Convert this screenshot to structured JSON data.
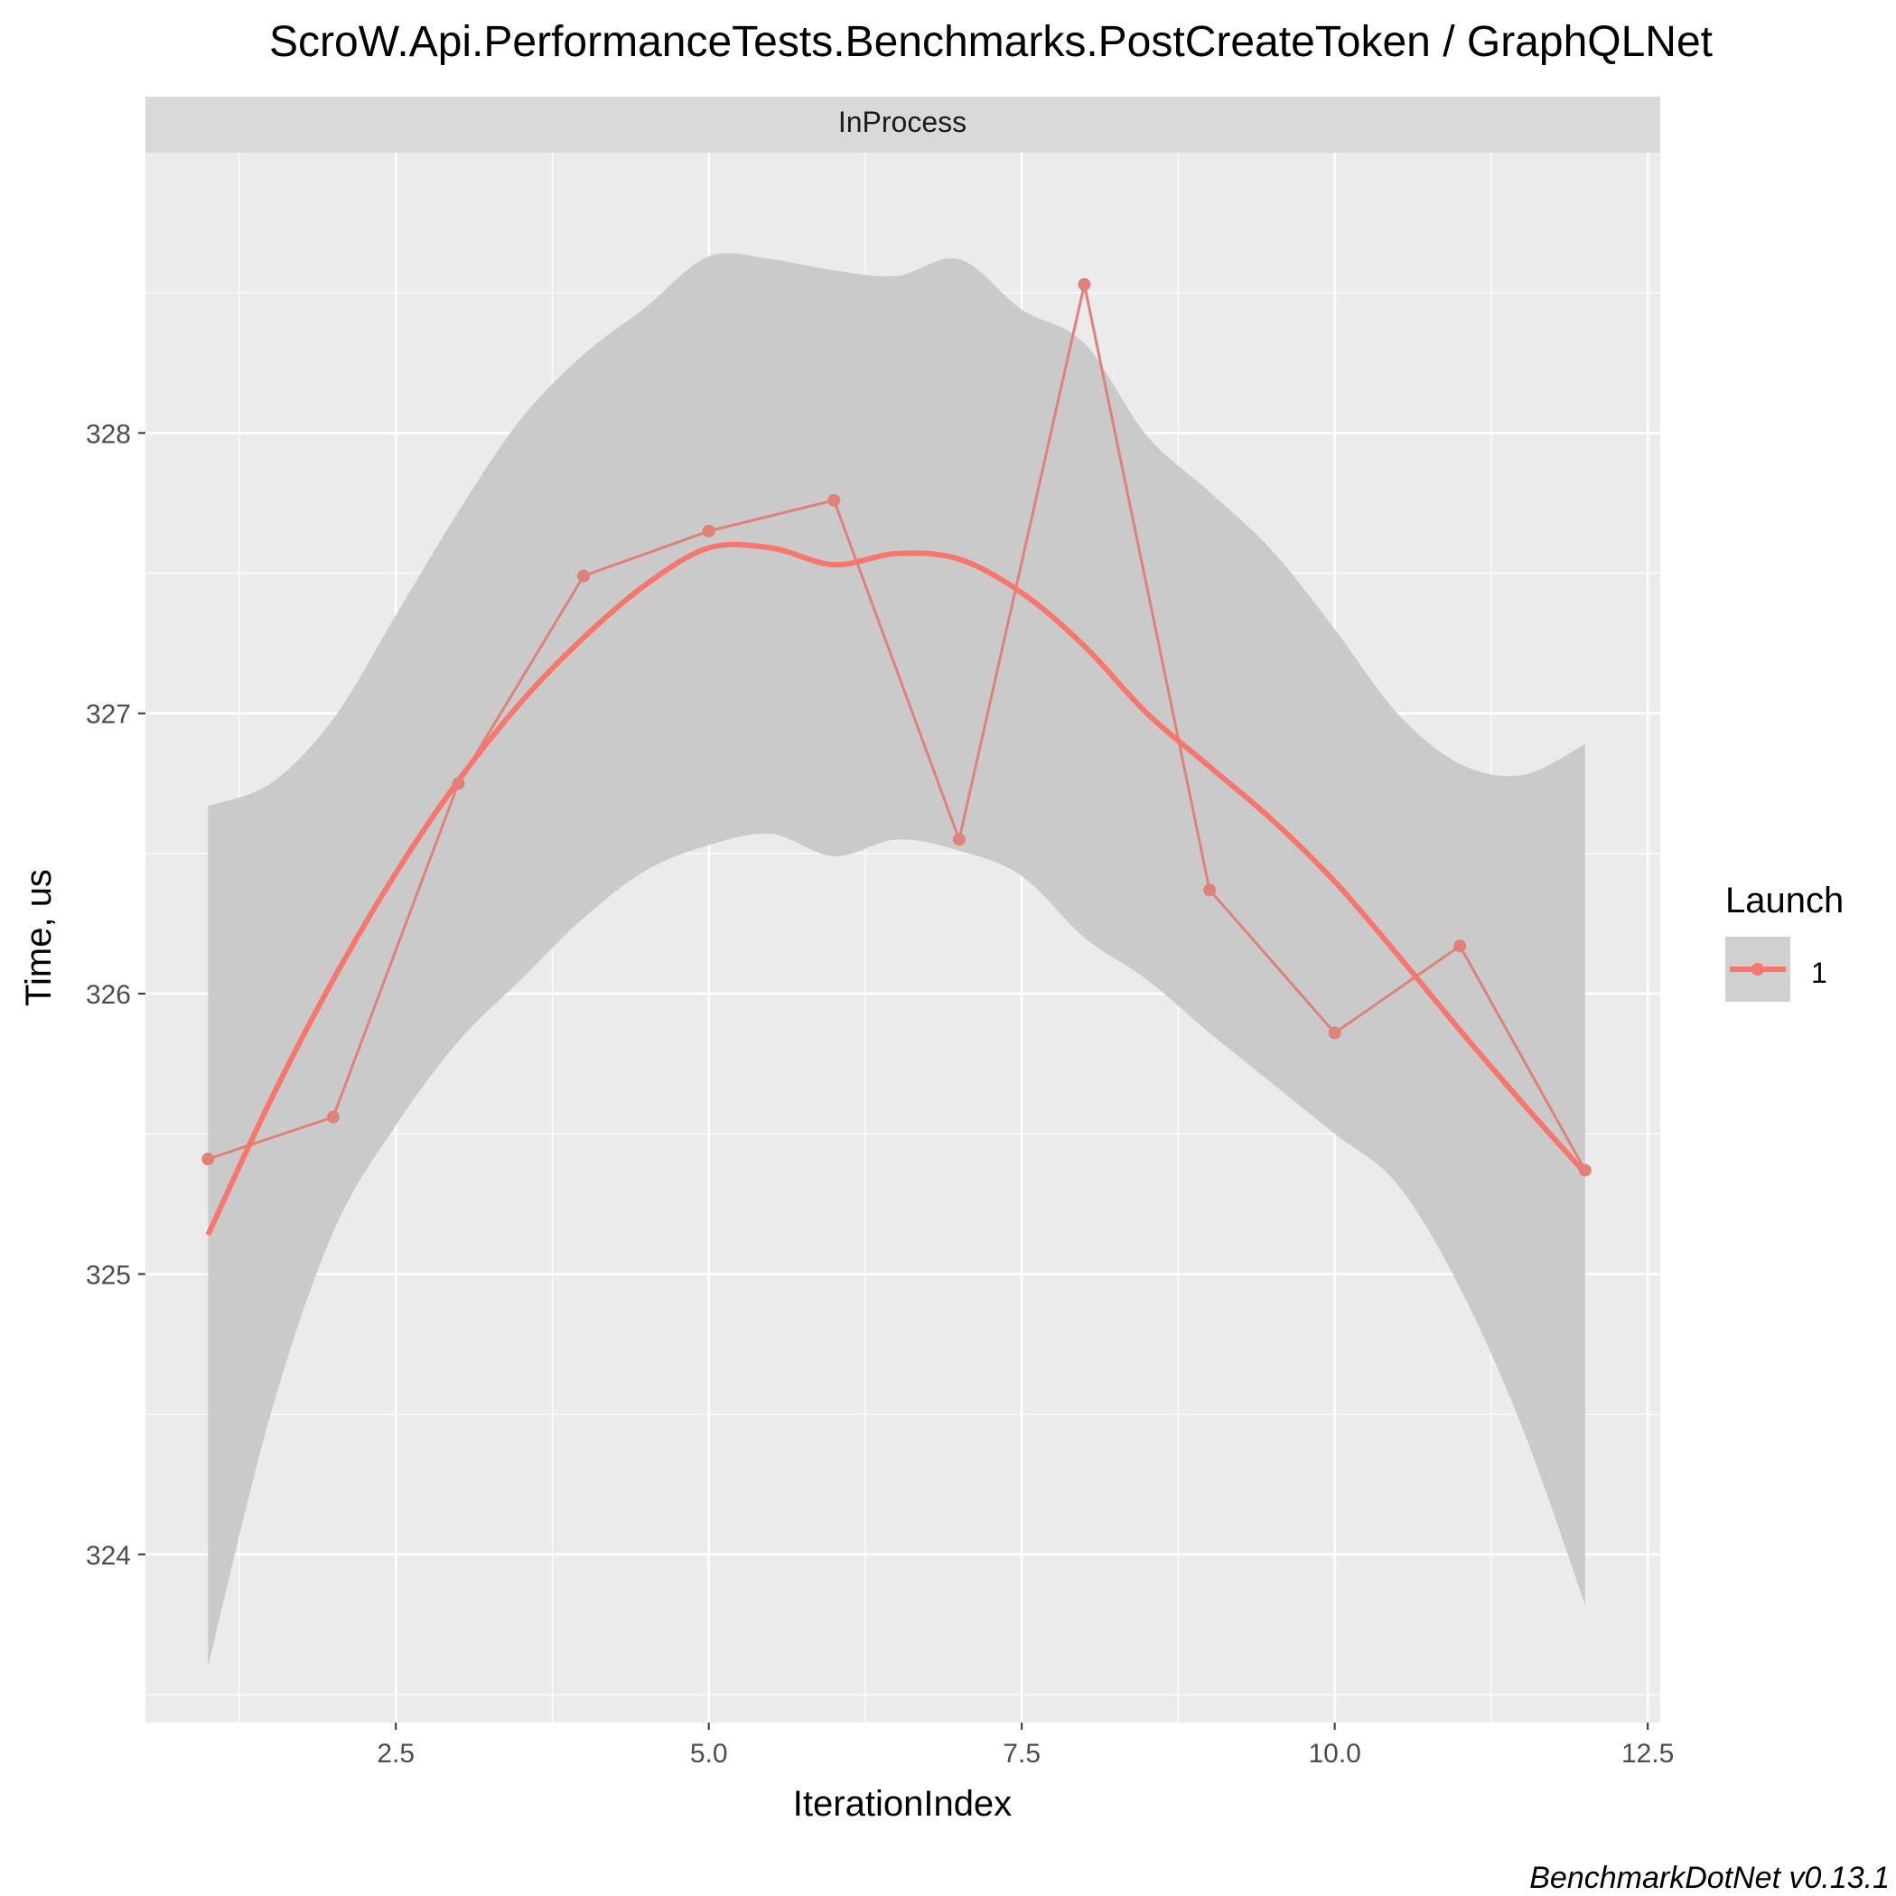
{
  "chart_data": {
    "type": "line",
    "title": "ScroW.Api.PerformanceTests.Benchmarks.PostCreateToken / GraphQLNet",
    "facet_label": "InProcess",
    "xlabel": "IterationIndex",
    "ylabel": "Time, us",
    "caption": "BenchmarkDotNet v0.13.1",
    "xlim": [
      0.5,
      12.6
    ],
    "ylim": [
      323.4,
      329.0
    ],
    "x_ticks": [
      2.5,
      5.0,
      7.5,
      10.0,
      12.5
    ],
    "x_tick_labels": [
      "2.5",
      "5.0",
      "7.5",
      "10.0",
      "12.5"
    ],
    "y_ticks": [
      324,
      325,
      326,
      327,
      328
    ],
    "y_tick_labels": [
      "324",
      "325",
      "326",
      "327",
      "328"
    ],
    "grid": true,
    "legend": {
      "title": "Launch",
      "position": "right",
      "entries": [
        {
          "label": "1",
          "color": "#F8766D"
        }
      ]
    },
    "series": [
      {
        "name": "1",
        "kind": "measurements",
        "color": "#E0817A",
        "x": [
          1,
          2,
          3,
          4,
          5,
          6,
          7,
          8,
          9,
          10,
          11,
          12
        ],
        "y": [
          325.41,
          325.56,
          326.75,
          327.49,
          327.65,
          327.76,
          326.55,
          328.53,
          326.37,
          325.86,
          326.17,
          325.37
        ]
      },
      {
        "name": "1",
        "kind": "smooth",
        "color": "#F8766D",
        "x": [
          1.0,
          1.5,
          2.0,
          2.5,
          3.0,
          3.5,
          4.0,
          4.5,
          5.0,
          5.5,
          6.0,
          6.5,
          7.0,
          7.5,
          8.0,
          8.5,
          9.0,
          9.5,
          10.0,
          10.5,
          11.0,
          11.5,
          12.0
        ],
        "y": [
          325.14,
          325.62,
          326.05,
          326.43,
          326.76,
          327.04,
          327.27,
          327.46,
          327.59,
          327.59,
          327.53,
          327.57,
          327.55,
          327.43,
          327.24,
          327.0,
          326.81,
          326.62,
          326.4,
          326.14,
          325.87,
          325.61,
          325.36
        ],
        "ci_lower": [
          323.6,
          324.5,
          325.15,
          325.53,
          325.83,
          326.05,
          326.27,
          326.44,
          326.53,
          326.57,
          326.49,
          326.55,
          326.51,
          326.42,
          326.2,
          326.05,
          325.86,
          325.68,
          325.5,
          325.32,
          324.95,
          324.45,
          323.82
        ],
        "ci_upper": [
          326.67,
          326.75,
          326.98,
          327.35,
          327.72,
          328.05,
          328.28,
          328.45,
          328.63,
          328.62,
          328.58,
          328.56,
          328.62,
          328.44,
          328.32,
          327.99,
          327.79,
          327.58,
          327.3,
          327.0,
          326.82,
          326.78,
          326.89
        ]
      }
    ],
    "colors": {
      "panel_bg": "#EBEBEB",
      "strip_bg": "#D9D9D9",
      "grid": "#FFFFFF",
      "ribbon": "#C8C8C8",
      "text": "#000000",
      "tick_text": "#4D4D4D",
      "legend_key_bg": "#D0D0D0"
    }
  }
}
